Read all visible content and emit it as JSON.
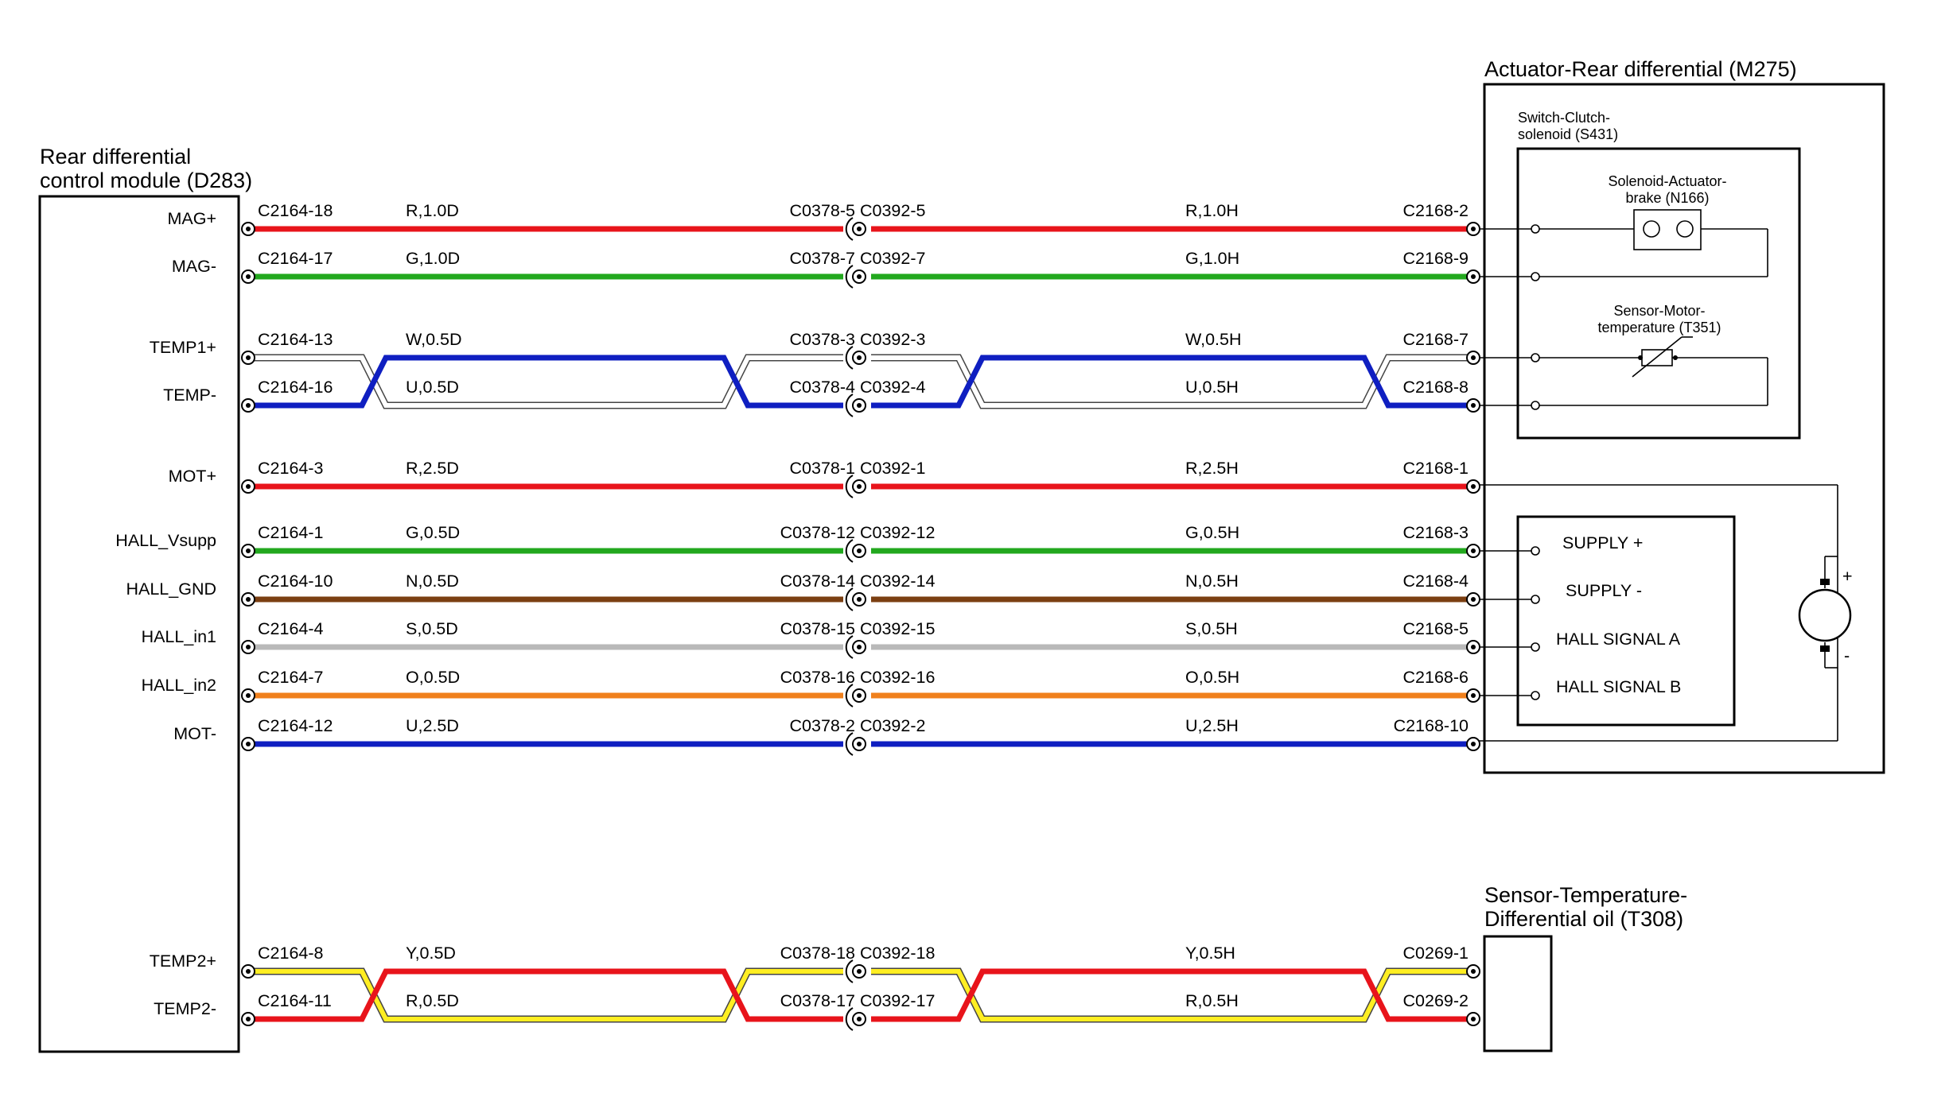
{
  "module": {
    "title_lines": [
      "Rear differential",
      "control module (D283)"
    ],
    "pins": [
      "MAG+",
      "MAG-",
      "TEMP1+",
      "TEMP-",
      "MOT+",
      "HALL_Vsupp",
      "HALL_GND",
      "HALL_in1",
      "HALL_in2",
      "MOT-",
      "TEMP2+",
      "TEMP2-"
    ]
  },
  "actuator": {
    "title": "Actuator-Rear differential (M275)",
    "switch_lines": [
      "Switch-Clutch-",
      "solenoid (S431)"
    ],
    "solenoid_lines": [
      "Solenoid-Actuator-",
      "brake (N166)"
    ],
    "sensor_lines": [
      "Sensor-Motor-",
      "temperature (T351)"
    ],
    "hall_labels": [
      "SUPPLY +",
      "SUPPLY -",
      "HALL SIGNAL A",
      "HALL SIGNAL B"
    ],
    "motor_plus": "+",
    "motor_minus": "-"
  },
  "oil_sensor": {
    "title_lines": [
      "Sensor-Temperature-",
      "Differential oil (T308)"
    ]
  },
  "wires": [
    {
      "pin_left": "C2164-18",
      "spec_left": "R,1.0D",
      "inline": "C0378-5 C0392-5",
      "spec_right": "R,1.0H",
      "pin_right": "C2168-2",
      "color": "#e8141b"
    },
    {
      "pin_left": "C2164-17",
      "spec_left": "G,1.0D",
      "inline": "C0378-7 C0392-7",
      "spec_right": "G,1.0H",
      "pin_right": "C2168-9",
      "color": "#22a81e"
    },
    {
      "pin_left": "C2164-13",
      "spec_left": "W,0.5D",
      "inline": "C0378-3 C0392-3",
      "spec_right": "W,0.5H",
      "pin_right": "C2168-7",
      "color": "#ffffff"
    },
    {
      "pin_left": "C2164-16",
      "spec_left": "U,0.5D",
      "inline": "C0378-4 C0392-4",
      "spec_right": "U,0.5H",
      "pin_right": "C2168-8",
      "color": "#0f1fc1"
    },
    {
      "pin_left": "C2164-3",
      "spec_left": "R,2.5D",
      "inline": "C0378-1 C0392-1",
      "spec_right": "R,2.5H",
      "pin_right": "C2168-1",
      "color": "#e8141b"
    },
    {
      "pin_left": "C2164-1",
      "spec_left": "G,0.5D",
      "inline": "C0378-12 C0392-12",
      "spec_right": "G,0.5H",
      "pin_right": "C2168-3",
      "color": "#22a81e"
    },
    {
      "pin_left": "C2164-10",
      "spec_left": "N,0.5D",
      "inline": "C0378-14 C0392-14",
      "spec_right": "N,0.5H",
      "pin_right": "C2168-4",
      "color": "#7b3f12"
    },
    {
      "pin_left": "C2164-4",
      "spec_left": "S,0.5D",
      "inline": "C0378-15 C0392-15",
      "spec_right": "S,0.5H",
      "pin_right": "C2168-5",
      "color": "#b9b9b9"
    },
    {
      "pin_left": "C2164-7",
      "spec_left": "O,0.5D",
      "inline": "C0378-16 C0392-16",
      "spec_right": "O,0.5H",
      "pin_right": "C2168-6",
      "color": "#f0801c"
    },
    {
      "pin_left": "C2164-12",
      "spec_left": "U,2.5D",
      "inline": "C0378-2 C0392-2",
      "spec_right": "U,2.5H",
      "pin_right": "C2168-10",
      "color": "#0f1fc1"
    },
    {
      "pin_left": "C2164-8",
      "spec_left": "Y,0.5D",
      "inline": "C0378-18 C0392-18",
      "spec_right": "Y,0.5H",
      "pin_right": "C0269-1",
      "color": "#ffee22"
    },
    {
      "pin_left": "C2164-11",
      "spec_left": "R,0.5D",
      "inline": "C0378-17 C0392-17",
      "spec_right": "R,0.5H",
      "pin_right": "C0269-2",
      "color": "#e8141b"
    }
  ]
}
